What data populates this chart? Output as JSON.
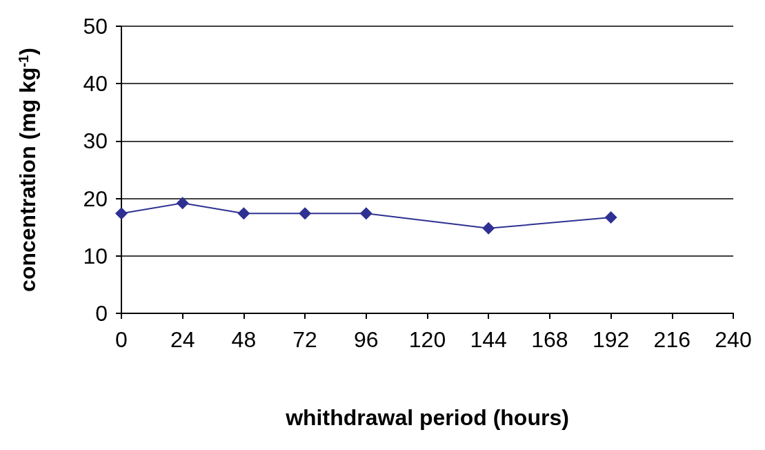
{
  "chart_data": {
    "type": "line",
    "xlabel": "whithdrawal period (hours)",
    "ylabel": "concentration (mg kg$^{-1}$)",
    "x": [
      0,
      24,
      48,
      72,
      96,
      144,
      192
    ],
    "series": [
      {
        "color": "#2e3192",
        "values": [
          17.4,
          19.2,
          17.4,
          17.4,
          17.4,
          14.8,
          16.7
        ]
      }
    ],
    "xlim": [
      0,
      240
    ],
    "xticks": [
      0,
      24,
      48,
      72,
      96,
      120,
      144,
      168,
      192,
      216,
      240
    ],
    "ylim": [
      0,
      50
    ],
    "yticks": [
      0,
      10,
      20,
      30,
      40,
      50
    ],
    "grid": "y",
    "marker": "diamond",
    "line_style": "solid"
  }
}
